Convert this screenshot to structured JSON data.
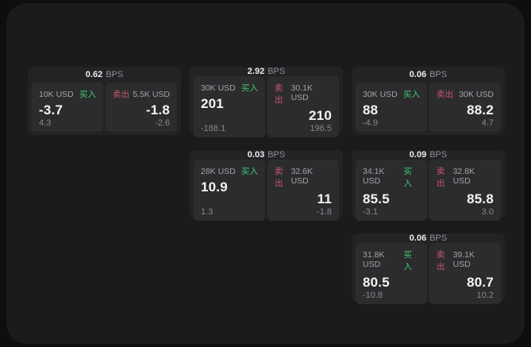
{
  "labels": {
    "buy": "买入",
    "sell": "卖出",
    "bps": "BPS"
  },
  "colors": {
    "page_bg": "#0e0e0f",
    "panel_bg": "#1b1b1d",
    "card_bg": "#232326",
    "cell_bg": "#2c2c2e",
    "buy_green": "#3ecb74",
    "sell_red": "#c9566b"
  },
  "cards": [
    {
      "bps": "0.62",
      "buy": {
        "notional": "10K USD",
        "value": "-3.7",
        "sub": "4.3"
      },
      "sell": {
        "notional": "5.5K USD",
        "value": "-1.8",
        "sub": "-2.6"
      }
    },
    {
      "bps": "2.92",
      "buy": {
        "notional": "30K USD",
        "value": "201",
        "sub": "-188.1"
      },
      "sell": {
        "notional": "30.1K USD",
        "value": "210",
        "sub": "196.5"
      }
    },
    {
      "bps": "0.06",
      "buy": {
        "notional": "30K USD",
        "value": "88",
        "sub": "-4.9"
      },
      "sell": {
        "notional": "30K USD",
        "value": "88.2",
        "sub": "4.7"
      }
    },
    {
      "bps": "0.03",
      "buy": {
        "notional": "28K USD",
        "value": "10.9",
        "sub": "1.3"
      },
      "sell": {
        "notional": "32.6K USD",
        "value": "11",
        "sub": "-1.8"
      }
    },
    {
      "bps": "0.09",
      "buy": {
        "notional": "34.1K USD",
        "value": "85.5",
        "sub": "-3.1"
      },
      "sell": {
        "notional": "32.8K USD",
        "value": "85.8",
        "sub": "3.0"
      }
    },
    {
      "bps": "0.06",
      "buy": {
        "notional": "31.8K USD",
        "value": "80.5",
        "sub": "-10.8"
      },
      "sell": {
        "notional": "39.1K USD",
        "value": "80.7",
        "sub": "10.2"
      }
    }
  ]
}
